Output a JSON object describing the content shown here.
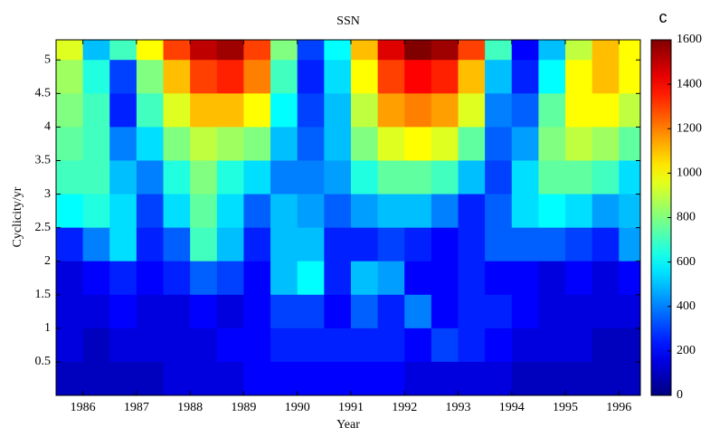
{
  "chart_data": {
    "type": "heatmap",
    "title": "SSN",
    "x_label": "Year",
    "y_label": "Cyclicity/yr",
    "colorbar_label": "c",
    "colormap": "jet",
    "x": [
      1985.75,
      1986.25,
      1986.75,
      1987.25,
      1987.75,
      1988.25,
      1988.75,
      1989.25,
      1989.75,
      1990.25,
      1990.75,
      1991.25,
      1991.75,
      1992.25,
      1992.75,
      1993.25,
      1993.75,
      1994.25,
      1994.75,
      1995.25,
      1995.75,
      1996.25
    ],
    "y": [
      5.25,
      4.75,
      4.25,
      3.75,
      3.25,
      2.75,
      2.25,
      1.75,
      1.25,
      0.75,
      0.25
    ],
    "z": [
      [
        950,
        500,
        700,
        1000,
        1300,
        1500,
        1550,
        1300,
        800,
        300,
        600,
        1100,
        1450,
        1600,
        1550,
        1300,
        700,
        200,
        500,
        900,
        1100,
        1000
      ],
      [
        850,
        650,
        300,
        800,
        1100,
        1300,
        1350,
        1200,
        700,
        250,
        550,
        1000,
        1300,
        1400,
        1350,
        1100,
        500,
        250,
        600,
        1000,
        1100,
        1000
      ],
      [
        800,
        700,
        250,
        700,
        950,
        1100,
        1100,
        1000,
        600,
        300,
        500,
        900,
        1150,
        1200,
        1150,
        950,
        400,
        350,
        750,
        1000,
        1000,
        900
      ],
      [
        750,
        700,
        400,
        550,
        800,
        900,
        850,
        800,
        500,
        350,
        500,
        800,
        950,
        1000,
        950,
        750,
        350,
        450,
        800,
        900,
        850,
        750
      ],
      [
        700,
        700,
        500,
        400,
        650,
        800,
        650,
        550,
        400,
        400,
        450,
        650,
        750,
        750,
        700,
        500,
        300,
        550,
        750,
        750,
        700,
        550
      ],
      [
        600,
        650,
        550,
        300,
        550,
        750,
        550,
        350,
        500,
        450,
        350,
        450,
        500,
        500,
        400,
        250,
        350,
        550,
        600,
        550,
        450,
        500
      ],
      [
        250,
        400,
        550,
        250,
        350,
        700,
        500,
        250,
        500,
        500,
        250,
        250,
        300,
        250,
        200,
        250,
        350,
        350,
        350,
        300,
        250,
        450
      ],
      [
        150,
        200,
        250,
        200,
        250,
        350,
        300,
        200,
        500,
        600,
        250,
        500,
        450,
        200,
        200,
        250,
        200,
        200,
        150,
        200,
        150,
        200
      ],
      [
        150,
        150,
        200,
        150,
        150,
        200,
        150,
        200,
        300,
        300,
        200,
        350,
        250,
        400,
        200,
        250,
        250,
        200,
        150,
        150,
        150,
        150
      ],
      [
        150,
        100,
        150,
        150,
        150,
        150,
        200,
        200,
        250,
        250,
        250,
        250,
        250,
        200,
        300,
        250,
        200,
        150,
        150,
        150,
        100,
        100
      ],
      [
        100,
        100,
        100,
        100,
        150,
        150,
        150,
        200,
        200,
        200,
        200,
        200,
        200,
        150,
        150,
        150,
        150,
        100,
        100,
        100,
        100,
        100
      ]
    ],
    "xlim": [
      1985.5,
      1996.4
    ],
    "ylim": [
      0,
      5.3
    ],
    "clim": [
      0,
      1600
    ],
    "xticks": [
      1986,
      1987,
      1988,
      1989,
      1990,
      1991,
      1992,
      1993,
      1994,
      1995,
      1996
    ],
    "yticks": [
      0.5,
      1,
      1.5,
      2,
      2.5,
      3,
      3.5,
      4,
      4.5,
      5
    ],
    "cticks": [
      0,
      200,
      400,
      600,
      800,
      1000,
      1200,
      1400,
      1600
    ]
  }
}
